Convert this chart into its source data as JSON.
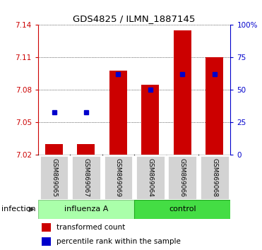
{
  "title": "GDS4825 / ILMN_1887145",
  "samples": [
    "GSM869065",
    "GSM869067",
    "GSM869069",
    "GSM869064",
    "GSM869066",
    "GSM869068"
  ],
  "transformed_count": [
    7.03,
    7.03,
    7.098,
    7.085,
    7.135,
    7.11
  ],
  "percentile_rank": [
    33,
    33,
    62,
    50,
    62,
    62
  ],
  "y_min": 7.02,
  "y_max": 7.14,
  "y_ticks": [
    7.02,
    7.05,
    7.08,
    7.11,
    7.14
  ],
  "y2_ticks": [
    0,
    25,
    50,
    75,
    100
  ],
  "bar_color": "#cc0000",
  "dot_color": "#0000cc",
  "influenza_color": "#aaffaa",
  "control_color": "#44dd44",
  "infection_label": "infection",
  "legend_bar_label": "transformed count",
  "legend_dot_label": "percentile rank within the sample"
}
